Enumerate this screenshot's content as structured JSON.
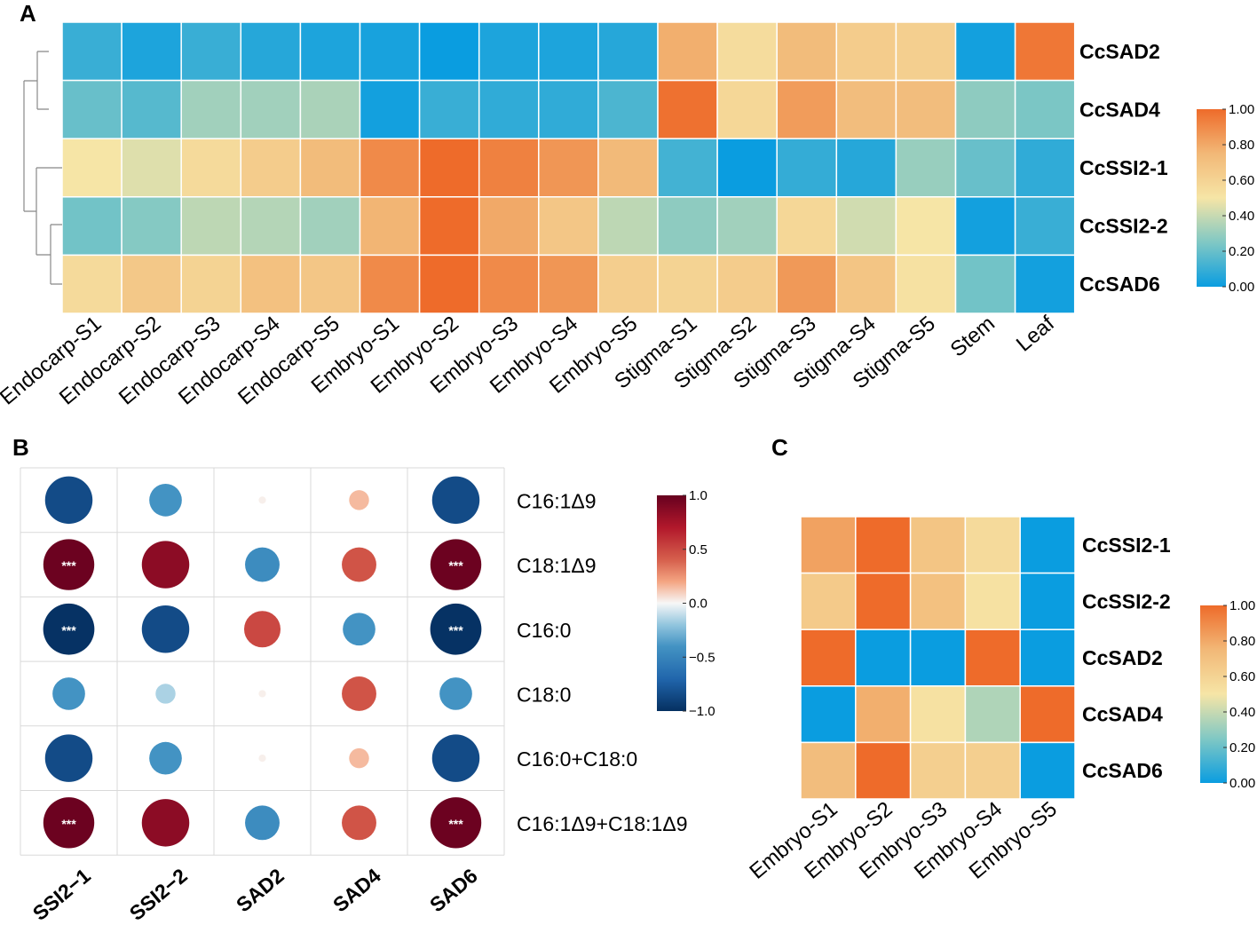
{
  "panels": {
    "a": "A",
    "b": "B",
    "c": "C"
  },
  "chart_data": [
    {
      "id": "A",
      "type": "heatmap",
      "title": "",
      "rows": [
        "CcSAD2",
        "CcSAD4",
        "CcSSI2-1",
        "CcSSI2-2",
        "CcSAD6"
      ],
      "columns": [
        "Endocarp-S1",
        "Endocarp-S2",
        "Endocarp-S3",
        "Endocarp-S4",
        "Endocarp-S5",
        "Embryo-S1",
        "Embryo-S2",
        "Embryo-S3",
        "Embryo-S4",
        "Embryo-S5",
        "Stigma-S1",
        "Stigma-S2",
        "Stigma-S3",
        "Stigma-S4",
        "Stigma-S5",
        "Stem",
        "Leaf"
      ],
      "values": [
        [
          0.1,
          0.04,
          0.1,
          0.06,
          0.04,
          0.03,
          0.0,
          0.04,
          0.04,
          0.06,
          0.78,
          0.55,
          0.73,
          0.64,
          0.62,
          0.02,
          0.96
        ],
        [
          0.2,
          0.16,
          0.32,
          0.32,
          0.34,
          0.02,
          0.1,
          0.08,
          0.08,
          0.14,
          0.98,
          0.58,
          0.84,
          0.72,
          0.72,
          0.28,
          0.24
        ],
        [
          0.5,
          0.45,
          0.56,
          0.64,
          0.73,
          0.9,
          1.0,
          0.93,
          0.86,
          0.74,
          0.12,
          0.0,
          0.09,
          0.06,
          0.3,
          0.2,
          0.08
        ],
        [
          0.22,
          0.26,
          0.38,
          0.36,
          0.32,
          0.76,
          1.0,
          0.8,
          0.67,
          0.38,
          0.28,
          0.32,
          0.58,
          0.42,
          0.5,
          0.02,
          0.1
        ],
        [
          0.56,
          0.66,
          0.6,
          0.7,
          0.67,
          0.9,
          1.0,
          0.9,
          0.86,
          0.63,
          0.6,
          0.64,
          0.85,
          0.68,
          0.52,
          0.22,
          0.02
        ]
      ],
      "dendrogram": "rows clustered: (CcSAD2, CcSAD4), ((CcSSI2-1, (CcSSI2-2, CcSAD6)))",
      "legend": {
        "ticks": [
          "0.00",
          "0.20",
          "0.40",
          "0.60",
          "0.80",
          "1.00"
        ],
        "min": 0,
        "max": 1
      }
    },
    {
      "id": "B",
      "type": "correlation",
      "columns": [
        "SSI2−1",
        "SSI2−2",
        "SAD2",
        "SAD4",
        "SAD6"
      ],
      "rows": [
        "C16:1Δ9",
        "C18:1Δ9",
        "C16:0",
        "C18:0",
        "C16:0+C18:0",
        "C16:1Δ9+C18:1Δ9"
      ],
      "values": [
        [
          -0.85,
          -0.4,
          0.02,
          0.15,
          -0.85
        ],
        [
          0.98,
          0.85,
          -0.45,
          0.45,
          0.98
        ],
        [
          -0.99,
          -0.85,
          0.5,
          -0.4,
          -0.99
        ],
        [
          -0.4,
          -0.15,
          0.02,
          0.45,
          -0.4
        ],
        [
          -0.85,
          -0.4,
          0.02,
          0.15,
          -0.85
        ],
        [
          0.98,
          0.85,
          -0.45,
          0.45,
          0.98
        ]
      ],
      "significance": [
        [
          "",
          "",
          "",
          "",
          ""
        ],
        [
          "***",
          "",
          "",
          "",
          "***"
        ],
        [
          "***",
          "",
          "",
          "",
          "***"
        ],
        [
          "",
          "",
          "",
          "",
          ""
        ],
        [
          "",
          "",
          "",
          "",
          ""
        ],
        [
          "***",
          "",
          "",
          "",
          "***"
        ]
      ],
      "legend": {
        "ticks": [
          "1.0",
          "0.5",
          "0.0",
          "−0.5",
          "−1.0"
        ],
        "min": -1,
        "max": 1
      }
    },
    {
      "id": "C",
      "type": "heatmap",
      "rows": [
        "CcSSI2-1",
        "CcSSI2-2",
        "CcSAD2",
        "CcSAD4",
        "CcSAD6"
      ],
      "columns": [
        "Embryo-S1",
        "Embryo-S2",
        "Embryo-S3",
        "Embryo-S4",
        "Embryo-S5"
      ],
      "values": [
        [
          0.82,
          1.0,
          0.68,
          0.56,
          0.0
        ],
        [
          0.65,
          1.0,
          0.7,
          0.52,
          0.0
        ],
        [
          1.0,
          0.0,
          0.0,
          1.0,
          0.0
        ],
        [
          0.0,
          0.78,
          0.52,
          0.35,
          1.0
        ],
        [
          0.72,
          1.0,
          0.62,
          0.62,
          0.0
        ]
      ],
      "legend": {
        "ticks": [
          "0.00",
          "0.20",
          "0.40",
          "0.60",
          "0.80",
          "1.00"
        ],
        "min": 0,
        "max": 1
      }
    }
  ],
  "colors": {
    "heat_low": "#0a9de0",
    "heat_lowmid": "#80c8c4",
    "heat_mid": "#f6e5a6",
    "heat_highmid": "#f2b877",
    "heat_high": "#ee6b2a",
    "corr_neg": "#053061",
    "corr_zero": "#f7f7f7",
    "corr_pos": "#67001f"
  }
}
